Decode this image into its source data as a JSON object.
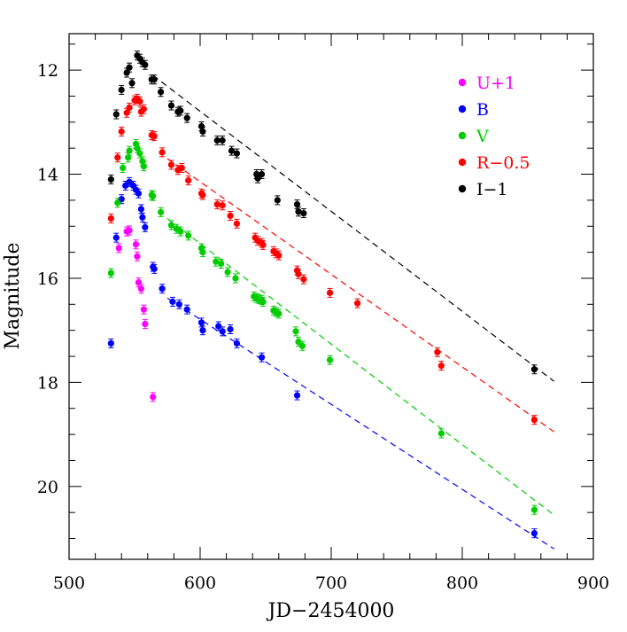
{
  "chart_data": {
    "type": "scatter",
    "xlabel": "JD−2454000",
    "ylabel": "Magnitude",
    "xlim": [
      500,
      900
    ],
    "ylim": [
      21.4,
      11.3
    ],
    "y_inverted": true,
    "x_ticks": [
      500,
      600,
      700,
      800,
      900
    ],
    "x_tick_labels": [
      "500",
      "600",
      "700",
      "800",
      "900"
    ],
    "y_ticks": [
      12,
      14,
      16,
      18,
      20
    ],
    "y_tick_labels": [
      "12",
      "14",
      "16",
      "18",
      "20"
    ],
    "legend_position": "top-right",
    "series": [
      {
        "name": "U+1",
        "color": "#ff00ff",
        "points": [
          [
            538,
            15.42
          ],
          [
            544,
            15.1
          ],
          [
            546,
            15.08
          ],
          [
            551,
            15.35
          ],
          [
            552,
            15.58
          ],
          [
            553,
            16.08
          ],
          [
            555,
            16.2
          ],
          [
            557,
            16.6
          ],
          [
            558,
            16.88
          ],
          [
            564,
            18.28
          ]
        ]
      },
      {
        "name": "B",
        "color": "#0000ff",
        "points": [
          [
            532,
            17.25
          ],
          [
            536,
            15.22
          ],
          [
            540,
            14.48
          ],
          [
            543,
            14.22
          ],
          [
            546,
            14.15
          ],
          [
            549,
            14.22
          ],
          [
            551,
            14.3
          ],
          [
            553,
            14.37
          ],
          [
            555,
            14.67
          ],
          [
            556,
            14.83
          ],
          [
            558,
            15.02
          ],
          [
            564,
            15.78
          ],
          [
            565,
            15.82
          ],
          [
            571,
            16.2
          ],
          [
            579,
            16.45
          ],
          [
            584,
            16.5
          ],
          [
            590,
            16.6
          ],
          [
            601,
            16.85
          ],
          [
            602,
            17.0
          ],
          [
            614,
            16.92
          ],
          [
            617,
            17.02
          ],
          [
            623,
            16.98
          ],
          [
            628,
            17.25
          ],
          [
            647,
            17.52
          ],
          [
            674,
            18.25
          ],
          [
            855,
            20.9
          ]
        ]
      },
      {
        "name": "V",
        "color": "#00cc00",
        "points": [
          [
            532,
            15.9
          ],
          [
            537,
            14.55
          ],
          [
            541,
            13.88
          ],
          [
            545,
            13.68
          ],
          [
            546,
            13.55
          ],
          [
            551,
            13.42
          ],
          [
            552,
            13.5
          ],
          [
            554,
            13.6
          ],
          [
            556,
            13.75
          ],
          [
            557,
            13.85
          ],
          [
            563,
            14.4
          ],
          [
            564,
            14.42
          ],
          [
            570,
            14.73
          ],
          [
            578,
            14.98
          ],
          [
            582,
            15.05
          ],
          [
            585,
            15.1
          ],
          [
            591,
            15.18
          ],
          [
            601,
            15.42
          ],
          [
            602,
            15.5
          ],
          [
            612,
            15.68
          ],
          [
            616,
            15.72
          ],
          [
            621,
            15.88
          ],
          [
            627,
            16.0
          ],
          [
            641,
            16.35
          ],
          [
            643,
            16.38
          ],
          [
            645,
            16.4
          ],
          [
            647,
            16.42
          ],
          [
            648,
            16.45
          ],
          [
            656,
            16.62
          ],
          [
            658,
            16.65
          ],
          [
            660,
            16.68
          ],
          [
            673,
            17.02
          ],
          [
            675,
            17.22
          ],
          [
            678,
            17.3
          ],
          [
            699,
            17.57
          ],
          [
            784,
            18.98
          ],
          [
            855,
            20.45
          ]
        ]
      },
      {
        "name": "R−0.5",
        "color": "#ff0000",
        "points": [
          [
            532,
            14.85
          ],
          [
            537,
            13.68
          ],
          [
            540,
            13.18
          ],
          [
            544,
            12.82
          ],
          [
            546,
            12.72
          ],
          [
            550,
            12.58
          ],
          [
            552,
            12.55
          ],
          [
            554,
            12.6
          ],
          [
            555,
            12.8
          ],
          [
            557,
            12.75
          ],
          [
            563,
            13.25
          ],
          [
            565,
            13.27
          ],
          [
            571,
            13.58
          ],
          [
            578,
            13.82
          ],
          [
            583,
            13.92
          ],
          [
            586,
            13.88
          ],
          [
            591,
            14.12
          ],
          [
            601,
            14.37
          ],
          [
            602,
            14.4
          ],
          [
            613,
            14.58
          ],
          [
            617,
            14.6
          ],
          [
            623,
            14.8
          ],
          [
            628,
            14.95
          ],
          [
            642,
            15.22
          ],
          [
            644,
            15.28
          ],
          [
            647,
            15.32
          ],
          [
            648,
            15.36
          ],
          [
            656,
            15.48
          ],
          [
            658,
            15.52
          ],
          [
            660,
            15.56
          ],
          [
            674,
            15.85
          ],
          [
            675,
            15.92
          ],
          [
            679,
            16.02
          ],
          [
            699,
            16.28
          ],
          [
            720,
            16.48
          ],
          [
            781,
            17.42
          ],
          [
            784,
            17.68
          ],
          [
            855,
            18.72
          ]
        ]
      },
      {
        "name": "I−1",
        "color": "#000000",
        "points": [
          [
            532,
            14.1
          ],
          [
            536,
            12.85
          ],
          [
            540,
            12.38
          ],
          [
            544,
            12.05
          ],
          [
            546,
            11.95
          ],
          [
            548,
            12.25
          ],
          [
            552,
            11.72
          ],
          [
            554,
            11.78
          ],
          [
            556,
            11.85
          ],
          [
            558,
            11.9
          ],
          [
            563,
            12.18
          ],
          [
            565,
            12.18
          ],
          [
            570,
            12.42
          ],
          [
            578,
            12.68
          ],
          [
            583,
            12.8
          ],
          [
            585,
            12.78
          ],
          [
            590,
            12.92
          ],
          [
            601,
            13.08
          ],
          [
            602,
            13.18
          ],
          [
            613,
            13.35
          ],
          [
            617,
            13.35
          ],
          [
            624,
            13.55
          ],
          [
            628,
            13.6
          ],
          [
            643,
            14.0
          ],
          [
            644,
            14.08
          ],
          [
            647,
            14.0
          ],
          [
            659,
            14.5
          ],
          [
            674,
            14.58
          ],
          [
            675,
            14.72
          ],
          [
            679,
            14.75
          ],
          [
            855,
            17.75
          ]
        ]
      }
    ],
    "fit_lines": [
      {
        "series": "I−1",
        "color": "#000000",
        "x": [
          564,
          870
        ],
        "y": [
          12.1,
          17.98
        ]
      },
      {
        "series": "R−0.5",
        "color": "#ff0000",
        "x": [
          575,
          870
        ],
        "y": [
          13.7,
          18.95
        ]
      },
      {
        "series": "V",
        "color": "#00cc00",
        "x": [
          575,
          870
        ],
        "y": [
          14.85,
          20.55
        ]
      },
      {
        "series": "B",
        "color": "#0000ff",
        "x": [
          575,
          870
        ],
        "y": [
          16.38,
          21.2
        ]
      }
    ]
  }
}
